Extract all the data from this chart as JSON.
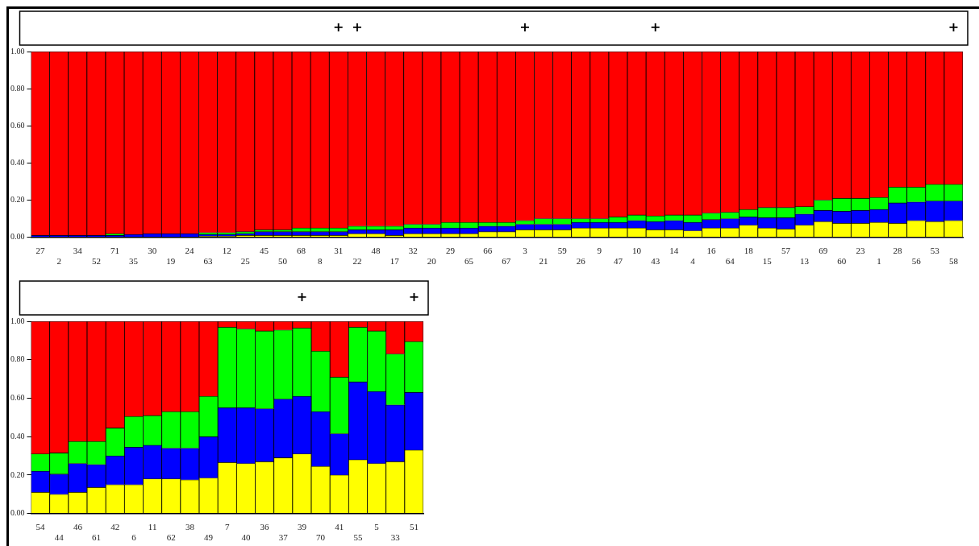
{
  "chart_data": [
    {
      "type": "bar",
      "stacked": true,
      "categories": [
        "27",
        "2",
        "34",
        "52",
        "71",
        "35",
        "30",
        "19",
        "24",
        "63",
        "12",
        "25",
        "45",
        "50",
        "68",
        "8",
        "31",
        "22",
        "48",
        "17",
        "32",
        "20",
        "29",
        "65",
        "66",
        "67",
        "3",
        "21",
        "59",
        "26",
        "9",
        "47",
        "10",
        "43",
        "14",
        "4",
        "16",
        "64",
        "18",
        "15",
        "57",
        "13",
        "69",
        "60",
        "23",
        "1",
        "28",
        "56",
        "53",
        "58"
      ],
      "series": [
        {
          "color": "#ffff00",
          "values": [
            0,
            0,
            0,
            0,
            0,
            0,
            0,
            0,
            0,
            0.005,
            0.005,
            0.01,
            0.01,
            0.01,
            0.01,
            0.01,
            0.01,
            0.02,
            0.02,
            0.01,
            0.02,
            0.02,
            0.02,
            0.02,
            0.03,
            0.03,
            0.04,
            0.04,
            0.04,
            0.05,
            0.05,
            0.05,
            0.05,
            0.04,
            0.04,
            0.035,
            0.05,
            0.05,
            0.065,
            0.05,
            0.045,
            0.065,
            0.085,
            0.075,
            0.075,
            0.08,
            0.075,
            0.09,
            0.085,
            0.09
          ]
        },
        {
          "color": "#0000ff",
          "values": [
            0.01,
            0.01,
            0.01,
            0.01,
            0.01,
            0.015,
            0.02,
            0.02,
            0.02,
            0.01,
            0.01,
            0.01,
            0.02,
            0.02,
            0.02,
            0.02,
            0.02,
            0.02,
            0.02,
            0.03,
            0.03,
            0.03,
            0.03,
            0.03,
            0.03,
            0.03,
            0.03,
            0.03,
            0.03,
            0.03,
            0.03,
            0.03,
            0.04,
            0.045,
            0.05,
            0.045,
            0.045,
            0.05,
            0.045,
            0.055,
            0.06,
            0.06,
            0.06,
            0.065,
            0.07,
            0.07,
            0.11,
            0.1,
            0.11,
            0.105
          ]
        },
        {
          "color": "#00ff00",
          "values": [
            0,
            0,
            0,
            0,
            0.01,
            0,
            0,
            0,
            0,
            0.01,
            0.01,
            0.01,
            0.01,
            0.01,
            0.02,
            0.02,
            0.02,
            0.02,
            0.02,
            0.02,
            0.02,
            0.02,
            0.03,
            0.03,
            0.02,
            0.02,
            0.02,
            0.03,
            0.03,
            0.02,
            0.02,
            0.03,
            0.03,
            0.03,
            0.03,
            0.04,
            0.035,
            0.035,
            0.04,
            0.055,
            0.055,
            0.04,
            0.055,
            0.07,
            0.065,
            0.065,
            0.085,
            0.08,
            0.09,
            0.09
          ]
        },
        {
          "color": "#ff0000",
          "values": [
            0.99,
            0.99,
            0.99,
            0.99,
            0.98,
            0.985,
            0.98,
            0.98,
            0.98,
            0.975,
            0.975,
            0.97,
            0.96,
            0.96,
            0.95,
            0.95,
            0.95,
            0.94,
            0.94,
            0.94,
            0.93,
            0.93,
            0.92,
            0.92,
            0.92,
            0.92,
            0.91,
            0.9,
            0.9,
            0.9,
            0.9,
            0.89,
            0.88,
            0.885,
            0.88,
            0.88,
            0.87,
            0.865,
            0.85,
            0.84,
            0.84,
            0.835,
            0.8,
            0.79,
            0.79,
            0.785,
            0.73,
            0.73,
            0.715,
            0.715
          ]
        }
      ],
      "ylim": [
        0,
        1
      ],
      "yticks": [
        {
          "value": 0,
          "label": "0.00"
        },
        {
          "value": 0.2,
          "label": "0.20"
        },
        {
          "value": 0.4,
          "label": "0.40"
        },
        {
          "value": 0.6,
          "label": "0.60"
        },
        {
          "value": 0.8,
          "label": "0.80"
        },
        {
          "value": 1,
          "label": "1.00"
        }
      ],
      "annotations": [
        {
          "text": "+",
          "x": "31",
          "y": 1
        },
        {
          "text": "+",
          "x": "22",
          "y": 1
        },
        {
          "text": "+",
          "x": "3",
          "y": 1
        },
        {
          "text": "+",
          "x": "43",
          "y": 1
        },
        {
          "text": "+",
          "x": "58",
          "y": 1
        }
      ]
    },
    {
      "type": "bar",
      "stacked": true,
      "categories": [
        "54",
        "44",
        "46",
        "61",
        "42",
        "6",
        "11",
        "62",
        "38",
        "49",
        "7",
        "40",
        "36",
        "37",
        "39",
        "70",
        "41",
        "55",
        "5",
        "33",
        "51"
      ],
      "series": [
        {
          "color": "#ffff00",
          "values": [
            0.11,
            0.1,
            0.11,
            0.135,
            0.15,
            0.15,
            0.18,
            0.18,
            0.175,
            0.185,
            0.265,
            0.26,
            0.27,
            0.29,
            0.31,
            0.245,
            0.2,
            0.28,
            0.26,
            0.27,
            0.33
          ]
        },
        {
          "color": "#0000ff",
          "values": [
            0.11,
            0.105,
            0.15,
            0.12,
            0.15,
            0.195,
            0.175,
            0.16,
            0.165,
            0.215,
            0.285,
            0.29,
            0.275,
            0.305,
            0.3,
            0.285,
            0.215,
            0.405,
            0.375,
            0.295,
            0.3
          ]
        },
        {
          "color": "#00ff00",
          "values": [
            0.09,
            0.11,
            0.115,
            0.12,
            0.145,
            0.16,
            0.155,
            0.19,
            0.19,
            0.21,
            0.42,
            0.41,
            0.405,
            0.36,
            0.355,
            0.315,
            0.295,
            0.285,
            0.315,
            0.265,
            0.265
          ]
        },
        {
          "color": "#ff0000",
          "values": [
            0.69,
            0.685,
            0.625,
            0.625,
            0.555,
            0.495,
            0.49,
            0.47,
            0.47,
            0.39,
            0.03,
            0.04,
            0.05,
            0.045,
            0.035,
            0.155,
            0.29,
            0.03,
            0.05,
            0.17,
            0.105
          ]
        }
      ],
      "ylim": [
        0,
        1
      ],
      "yticks": [
        {
          "value": 0,
          "label": "0.00"
        },
        {
          "value": 0.2,
          "label": "0.20"
        },
        {
          "value": 0.4,
          "label": "0.40"
        },
        {
          "value": 0.6,
          "label": "0.60"
        },
        {
          "value": 0.8,
          "label": "0.80"
        },
        {
          "value": 1,
          "label": "1.00"
        }
      ],
      "annotations": [
        {
          "text": "+",
          "x": "39",
          "y": 1
        },
        {
          "text": "+",
          "x": "51",
          "y": 1
        }
      ]
    }
  ]
}
